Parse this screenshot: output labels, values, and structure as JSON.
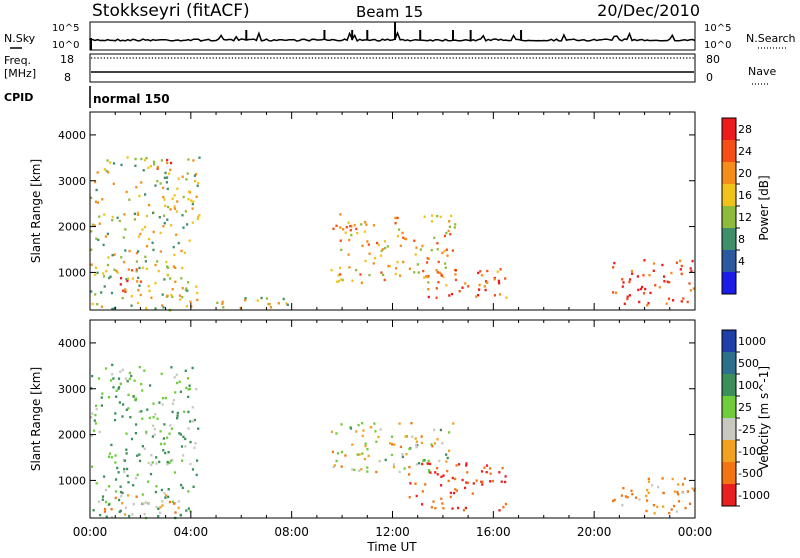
{
  "header": {
    "title": "Stokkseyri (fitACF)",
    "beam": "Beam 15",
    "date": "20/Dec/2010"
  },
  "strips": {
    "nsky_label": "N.Sky",
    "nsky_top": "10^5",
    "nsky_bottom": "10^0",
    "nsearch_label": "N.Search",
    "nsearch_top": "10^5",
    "nsearch_bottom": "10^0",
    "freq_label_1": "Freq.",
    "freq_label_2": "[MHz]",
    "freq_top": "18",
    "freq_bottom": "8",
    "nave_label": "Nave",
    "nave_top": "80",
    "nave_bottom": "0",
    "cpid_label": "CPID",
    "cpid_value": "normal 150"
  },
  "chart_data": [
    {
      "type": "heatmap",
      "panel": "power",
      "xlabel": "",
      "ylabel": "Slant Range [km]",
      "x_ticks": [
        "00:00",
        "04:00",
        "08:00",
        "12:00",
        "16:00",
        "20:00",
        "00:00"
      ],
      "y_ticks": [
        1000,
        2000,
        3000,
        4000
      ],
      "ylim": [
        180,
        4500
      ],
      "colorbar": {
        "label": "Power [dB]",
        "ticks": [
          "28",
          "24",
          "20",
          "16",
          "12",
          "8",
          "4"
        ],
        "colors": [
          "#ee1b1b",
          "#f54e16",
          "#f68d1b",
          "#f1c21a",
          "#8fbb3c",
          "#3f8f6a",
          "#2c58a0",
          "#1c1ce8"
        ]
      },
      "echo_regions": [
        {
          "t_start": 0.0,
          "t_end": 4.3,
          "range_min": 200,
          "range_max": 3550,
          "power_db": 16
        },
        {
          "t_start": 1.0,
          "t_end": 2.0,
          "range_min": 600,
          "range_max": 1200,
          "power_db": 28
        },
        {
          "t_start": 2.5,
          "t_end": 3.3,
          "range_min": 3200,
          "range_max": 3550,
          "power_db": 24
        },
        {
          "t_start": 5.0,
          "t_end": 8.0,
          "range_min": 200,
          "range_max": 500,
          "power_db": 16
        },
        {
          "t_start": 9.5,
          "t_end": 14.5,
          "range_min": 800,
          "range_max": 2300,
          "power_db": 20
        },
        {
          "t_start": 13.0,
          "t_end": 16.5,
          "range_min": 400,
          "range_max": 1100,
          "power_db": 24
        },
        {
          "t_start": 20.7,
          "t_end": 24.0,
          "range_min": 300,
          "range_max": 1300,
          "power_db": 28
        }
      ]
    },
    {
      "type": "heatmap",
      "panel": "velocity",
      "xlabel": "Time UT",
      "ylabel": "Slant Range [km]",
      "x_ticks": [
        "00:00",
        "04:00",
        "08:00",
        "12:00",
        "16:00",
        "20:00",
        "00:00"
      ],
      "y_ticks": [
        1000,
        2000,
        3000,
        4000
      ],
      "ylim": [
        180,
        4500
      ],
      "colorbar": {
        "label": "Velocity [m s^-1]",
        "ticks": [
          "1000",
          "500",
          "100",
          "25",
          "-25",
          "-100",
          "-500",
          "-1000"
        ],
        "colors": [
          "#1f3fa8",
          "#2d6f8d",
          "#3a8f5a",
          "#6fcc3b",
          "#c8c8c0",
          "#f2a21f",
          "#f27412",
          "#ea2020"
        ]
      },
      "echo_regions": [
        {
          "t_start": 0.0,
          "t_end": 4.3,
          "range_min": 200,
          "range_max": 3550,
          "velocity": 100
        },
        {
          "t_start": 0.5,
          "t_end": 3.5,
          "range_min": 250,
          "range_max": 700,
          "velocity": -100
        },
        {
          "t_start": 9.5,
          "t_end": 14.5,
          "range_min": 1200,
          "range_max": 2300,
          "velocity": 0
        },
        {
          "t_start": 12.5,
          "t_end": 16.5,
          "range_min": 350,
          "range_max": 1400,
          "velocity": -500
        },
        {
          "t_start": 20.7,
          "t_end": 24.0,
          "range_min": 300,
          "range_max": 1100,
          "velocity": -100
        }
      ]
    }
  ]
}
